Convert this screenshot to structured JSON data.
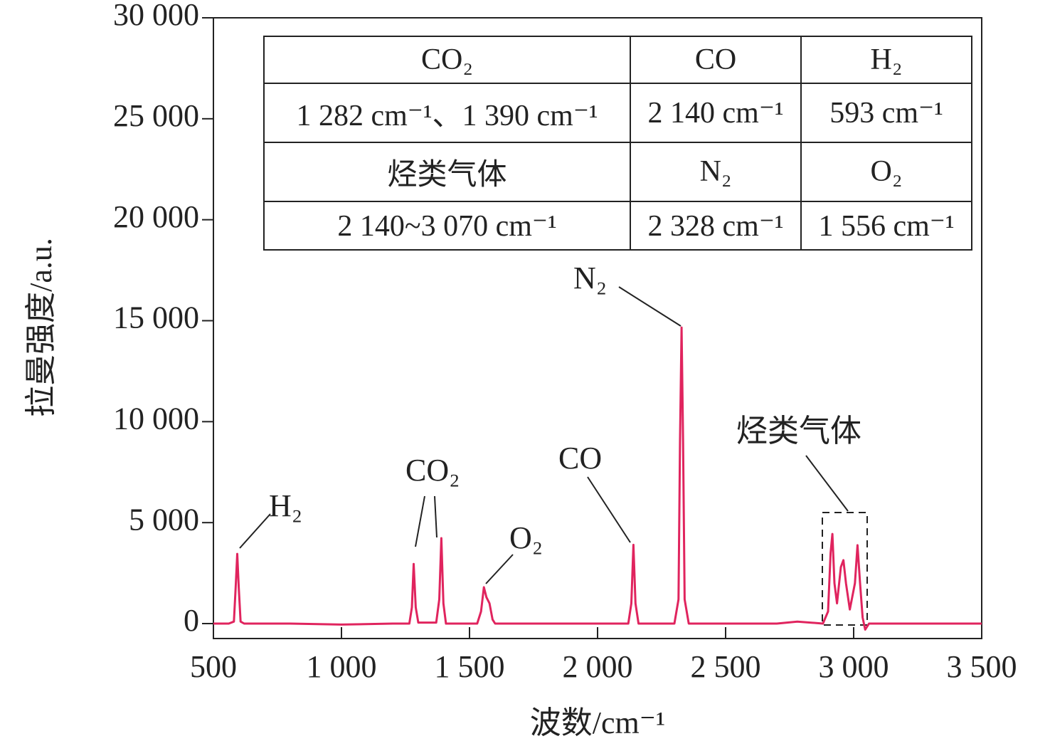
{
  "chart_data": {
    "type": "line",
    "x_label": "波数/cm⁻¹",
    "y_label": "拉曼强度/a.u.",
    "x": [
      500,
      560,
      580,
      587,
      593,
      599,
      606,
      620,
      800,
      1000,
      1200,
      1265,
      1275,
      1282,
      1290,
      1300,
      1370,
      1382,
      1390,
      1398,
      1408,
      1530,
      1545,
      1556,
      1566,
      1578,
      1590,
      1600,
      1800,
      2120,
      2132,
      2140,
      2148,
      2160,
      2300,
      2316,
      2322,
      2328,
      2334,
      2340,
      2356,
      2700,
      2780,
      2880,
      2900,
      2910,
      2917,
      2925,
      2935,
      2950,
      2960,
      2970,
      2985,
      3005,
      3015,
      3025,
      3035,
      3045,
      3060,
      3500
    ],
    "values": [
      0,
      0,
      100,
      1800,
      3450,
      1800,
      100,
      0,
      0,
      -50,
      0,
      0,
      800,
      2950,
      800,
      50,
      50,
      1200,
      4230,
      1000,
      0,
      0,
      600,
      1800,
      1300,
      1000,
      200,
      0,
      0,
      0,
      1000,
      3900,
      1000,
      0,
      0,
      1200,
      9000,
      14660,
      9000,
      1200,
      0,
      0,
      100,
      0,
      600,
      3500,
      4440,
      2000,
      1000,
      2800,
      3140,
      2000,
      700,
      2000,
      3880,
      2000,
      300,
      -300,
      0,
      0
    ],
    "color": "#e0245e",
    "xlim": [
      500,
      3500
    ],
    "xticks": [
      500,
      {
        "value": 1000,
        "label": "1 000"
      },
      {
        "value": 1500,
        "label": "1 500"
      },
      {
        "value": 2000,
        "label": "2 000"
      },
      {
        "value": 2500,
        "label": "2 500"
      },
      {
        "value": 3000,
        "label": "3 000"
      },
      {
        "value": 3500,
        "label": "3 500"
      }
    ],
    "ylim": [
      -740,
      30000
    ],
    "yticks": [
      0,
      {
        "value": 5000,
        "label": "5 000"
      },
      {
        "value": 10000,
        "label": "10 000"
      },
      {
        "value": 15000,
        "label": "15 000"
      },
      {
        "value": 20000,
        "label": "20 000"
      },
      {
        "value": 25000,
        "label": "25 000"
      },
      {
        "value": 30000,
        "label": "30 000"
      }
    ],
    "annotations": [
      "H₂",
      "CO₂",
      "O₂",
      "CO",
      "N₂",
      "烃类气体"
    ],
    "table": {
      "rows": [
        [
          "CO₂",
          "CO",
          "H₂"
        ],
        [
          "1 282 cm⁻¹、1 390 cm⁻¹",
          "2 140 cm⁻¹",
          "593 cm⁻¹"
        ],
        [
          "烃类气体",
          "N₂",
          "O₂"
        ],
        [
          "2 140~3 070 cm⁻¹",
          "2 328 cm⁻¹",
          "1 556 cm⁻¹"
        ]
      ]
    }
  }
}
